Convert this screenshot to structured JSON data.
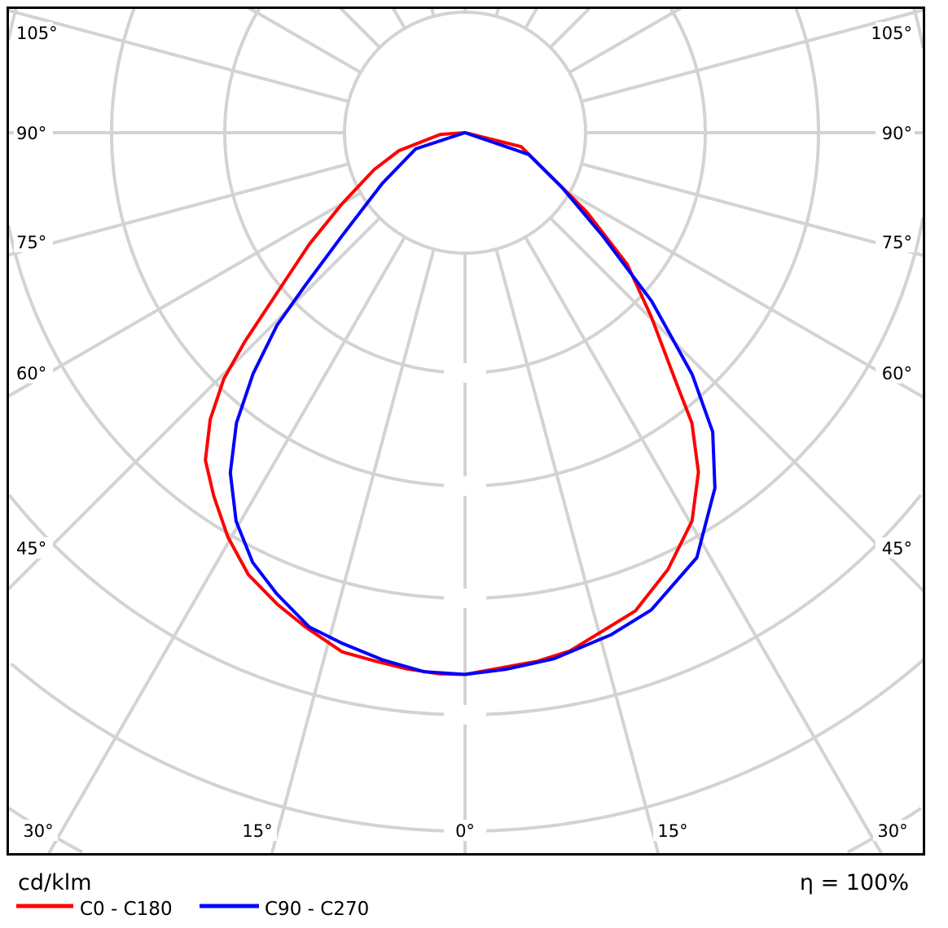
{
  "chart_data": {
    "type": "polar-line",
    "unit_label": "cd/klm",
    "efficiency_label": "η = 100%",
    "angle_labels_left": [
      "105°",
      "90°",
      "75°",
      "60°",
      "45°",
      "30°"
    ],
    "angle_labels_right": [
      "105°",
      "90°",
      "75°",
      "60°",
      "45°",
      "30°"
    ],
    "angle_labels_bottom": [
      "30°",
      "15°",
      "0°",
      "15°",
      "30°"
    ],
    "angular_grid_step_deg": 15,
    "radial_tick_labels_visible": false,
    "grid": true,
    "legend_position": "bottom-left",
    "intensity_unit_note": "values in radial grid-ring units; ring tick values not printed",
    "series": [
      {
        "name": "C0 - C180",
        "color": "#ff0000",
        "left": [
          [
            0,
            4.59
          ],
          [
            2.7,
            4.59
          ],
          [
            6.1,
            4.57
          ],
          [
            9.7,
            4.54
          ],
          [
            13.3,
            4.52
          ],
          [
            17.9,
            4.4
          ],
          [
            21.7,
            4.3
          ],
          [
            26.1,
            4.17
          ],
          [
            30.4,
            3.97
          ],
          [
            34.7,
            3.74
          ],
          [
            38.4,
            3.54
          ],
          [
            41.6,
            3.25
          ],
          [
            44.4,
            2.92
          ],
          [
            46.5,
            2.57
          ],
          [
            49.5,
            2.1
          ],
          [
            54.4,
            1.62
          ],
          [
            60,
            1.2
          ],
          [
            67.9,
            0.83
          ],
          [
            74.8,
            0.58
          ],
          [
            86,
            0.21
          ],
          [
            90,
            0
          ]
        ],
        "right": [
          [
            0,
            4.59
          ],
          [
            7.8,
            4.52
          ],
          [
            11.4,
            4.48
          ],
          [
            15.4,
            4.38
          ],
          [
            19.6,
            4.3
          ],
          [
            24.9,
            4.08
          ],
          [
            30.3,
            3.81
          ],
          [
            34.5,
            3.49
          ],
          [
            38,
            3.12
          ],
          [
            40.2,
            2.77
          ],
          [
            45.3,
            2.22
          ],
          [
            50.9,
            1.77
          ],
          [
            56.9,
            1.23
          ],
          [
            62.4,
            0.85
          ],
          [
            76,
            0.49
          ],
          [
            90,
            0
          ]
        ]
      },
      {
        "name": "C90 - C270",
        "color": "#0000ff",
        "left": [
          [
            0,
            4.59
          ],
          [
            4.4,
            4.58
          ],
          [
            8.9,
            4.52
          ],
          [
            13.5,
            4.45
          ],
          [
            17.5,
            4.39
          ],
          [
            22.2,
            4.22
          ],
          [
            26.3,
            4.06
          ],
          [
            30.5,
            3.82
          ],
          [
            34.6,
            3.5
          ],
          [
            38.2,
            3.13
          ],
          [
            41.3,
            2.72
          ],
          [
            44.3,
            2.28
          ],
          [
            46.3,
            1.87
          ],
          [
            50,
            1.36
          ],
          [
            58.5,
            0.82
          ],
          [
            71.8,
            0.44
          ],
          [
            90,
            0
          ]
        ],
        "right": [
          [
            0,
            4.59
          ],
          [
            4.3,
            4.56
          ],
          [
            9.6,
            4.52
          ],
          [
            16.2,
            4.43
          ],
          [
            21.3,
            4.34
          ],
          [
            28.6,
            4.1
          ],
          [
            35.1,
            3.68
          ],
          [
            39.6,
            3.29
          ],
          [
            43.2,
            2.81
          ],
          [
            47.9,
            2.13
          ],
          [
            53.1,
            1.46
          ],
          [
            60.6,
            0.94
          ],
          [
            71.1,
            0.57
          ],
          [
            90,
            0
          ]
        ]
      }
    ]
  }
}
